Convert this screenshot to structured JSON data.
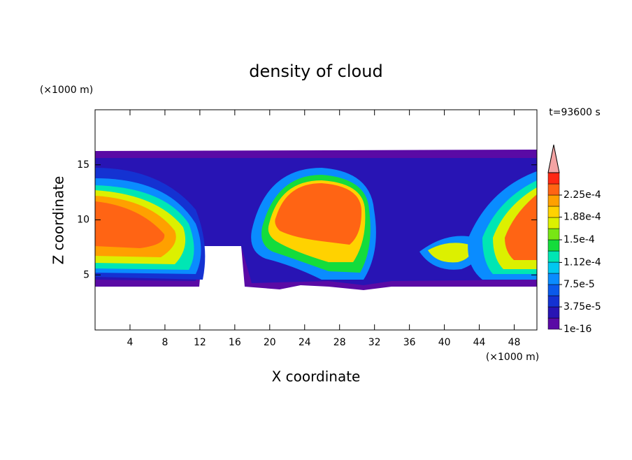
{
  "chart_data": {
    "type": "contour",
    "title": "density of cloud",
    "x_label": "X coordinate",
    "y_label": "Z coordinate",
    "x_unit": "(×1000 m)",
    "y_unit": "(×1000 m)",
    "time_label": "t=93600 s",
    "xlim": [
      0,
      50.6
    ],
    "ylim": [
      0,
      20
    ],
    "xticks": [
      4,
      8,
      12,
      16,
      20,
      24,
      28,
      32,
      36,
      40,
      44,
      48
    ],
    "yticks": [
      5,
      10,
      15
    ],
    "colorbar": {
      "clim": [
        1e-16,
        0.0002625
      ],
      "ticks": [
        {
          "value": 1e-16,
          "label": "1e-16"
        },
        {
          "value": 3.75e-05,
          "label": "3.75e-5"
        },
        {
          "value": 7.5e-05,
          "label": "7.5e-5"
        },
        {
          "value": 0.000112,
          "label": "1.12e-4"
        },
        {
          "value": 0.00015,
          "label": "1.5e-4"
        },
        {
          "value": 0.000188,
          "label": "1.88e-4"
        },
        {
          "value": 0.000225,
          "label": "2.25e-4"
        }
      ],
      "colors": [
        "#5a0aa5",
        "#2814b4",
        "#1432d2",
        "#0a5aeb",
        "#0a8cff",
        "#00c8f0",
        "#00e6b4",
        "#14dc3c",
        "#78e614",
        "#dcf000",
        "#ffd200",
        "#ffa000",
        "#ff6414",
        "#ff2814"
      ],
      "extend_color": "#f4a4a4"
    }
  }
}
